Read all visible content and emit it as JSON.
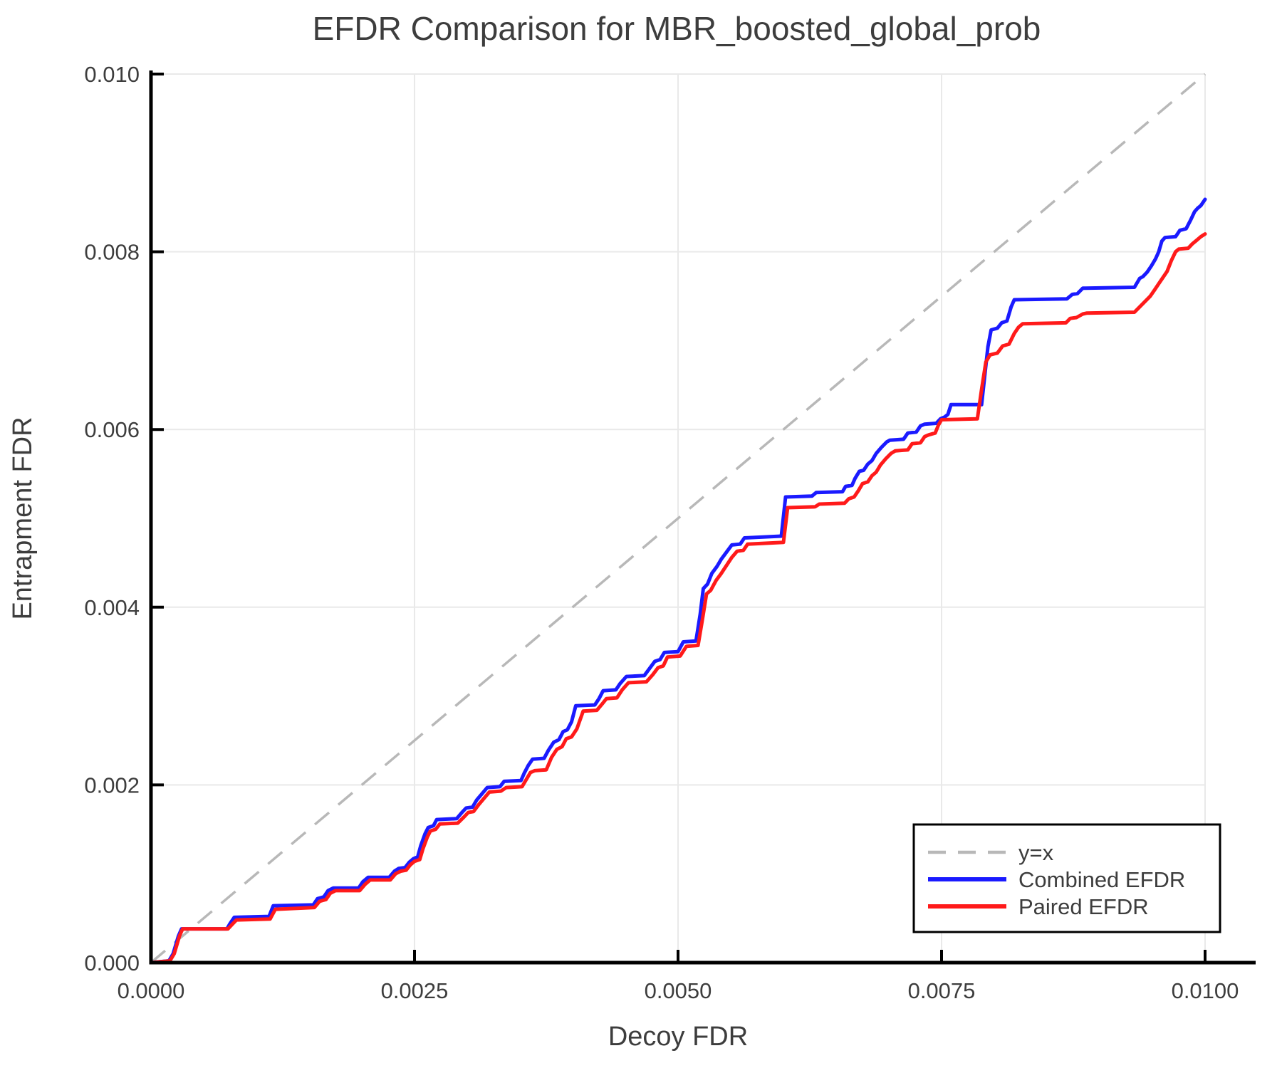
{
  "title": "EFDR Comparison for MBR_boosted_global_prob",
  "axes": {
    "xlabel": "Decoy FDR",
    "ylabel": "Entrapment FDR",
    "x_tick_labels": [
      "0.0000",
      "0.0025",
      "0.0050",
      "0.0075",
      "0.0100"
    ],
    "y_tick_labels": [
      "0.000",
      "0.002",
      "0.004",
      "0.006",
      "0.008",
      "0.010"
    ]
  },
  "legend": {
    "entries": [
      {
        "label": "y=x",
        "color": "#b8b8b8",
        "style": "dashed"
      },
      {
        "label": "Combined EFDR",
        "color": "#1a1aff",
        "style": "solid"
      },
      {
        "label": "Paired EFDR",
        "color": "#ff1a1a",
        "style": "solid"
      }
    ]
  },
  "colors": {
    "grid": "#e9e9e9",
    "spine": "#000000",
    "text": "#3d3d3d",
    "background": "#ffffff"
  },
  "chart_data": {
    "type": "line",
    "title": "EFDR Comparison for MBR_boosted_global_prob",
    "xlabel": "Decoy FDR",
    "ylabel": "Entrapment FDR",
    "xlim": [
      0.0,
      0.01
    ],
    "ylim": [
      0.0,
      0.01
    ],
    "grid": true,
    "legend_position": "lower right",
    "reference_line": "y=x",
    "series": [
      {
        "name": "Combined EFDR",
        "color": "#1a1aff",
        "points": [
          [
            0.0,
            0.0
          ],
          [
            0.00017,
            2e-05
          ],
          [
            0.00021,
            0.0001
          ],
          [
            0.00026,
            0.0003
          ],
          [
            0.00029,
            0.00038
          ],
          [
            0.00072,
            0.00038
          ],
          [
            0.00075,
            0.00044
          ],
          [
            0.00079,
            0.00051
          ],
          [
            0.00112,
            0.00052
          ],
          [
            0.00116,
            0.00064
          ],
          [
            0.00154,
            0.00065
          ],
          [
            0.00158,
            0.00072
          ],
          [
            0.00164,
            0.00074
          ],
          [
            0.00168,
            0.00081
          ],
          [
            0.00173,
            0.00084
          ],
          [
            0.00197,
            0.00084
          ],
          [
            0.00201,
            0.00091
          ],
          [
            0.00206,
            0.00096
          ],
          [
            0.00226,
            0.00096
          ],
          [
            0.00231,
            0.00103
          ],
          [
            0.00235,
            0.00106
          ],
          [
            0.00241,
            0.00107
          ],
          [
            0.00245,
            0.00113
          ],
          [
            0.00249,
            0.00117
          ],
          [
            0.00253,
            0.00119
          ],
          [
            0.00256,
            0.00132
          ],
          [
            0.0026,
            0.00145
          ],
          [
            0.00263,
            0.00152
          ],
          [
            0.00268,
            0.00154
          ],
          [
            0.00271,
            0.00161
          ],
          [
            0.0029,
            0.00162
          ],
          [
            0.00295,
            0.00169
          ],
          [
            0.00299,
            0.00174
          ],
          [
            0.00305,
            0.00175
          ],
          [
            0.00309,
            0.00183
          ],
          [
            0.00314,
            0.0019
          ],
          [
            0.00319,
            0.00197
          ],
          [
            0.00331,
            0.00198
          ],
          [
            0.00335,
            0.00204
          ],
          [
            0.00351,
            0.00205
          ],
          [
            0.00354,
            0.00213
          ],
          [
            0.00358,
            0.00222
          ],
          [
            0.00362,
            0.00229
          ],
          [
            0.00373,
            0.0023
          ],
          [
            0.00377,
            0.00239
          ],
          [
            0.00382,
            0.00248
          ],
          [
            0.00387,
            0.00251
          ],
          [
            0.00391,
            0.0026
          ],
          [
            0.00395,
            0.00262
          ],
          [
            0.00399,
            0.00271
          ],
          [
            0.00403,
            0.00289
          ],
          [
            0.00421,
            0.0029
          ],
          [
            0.00425,
            0.00297
          ],
          [
            0.00429,
            0.00306
          ],
          [
            0.00441,
            0.00307
          ],
          [
            0.00445,
            0.00314
          ],
          [
            0.00451,
            0.00322
          ],
          [
            0.00468,
            0.00323
          ],
          [
            0.00473,
            0.00331
          ],
          [
            0.00478,
            0.00339
          ],
          [
            0.00483,
            0.00341
          ],
          [
            0.00487,
            0.00349
          ],
          [
            0.005,
            0.0035
          ],
          [
            0.00505,
            0.00361
          ],
          [
            0.00517,
            0.00362
          ],
          [
            0.00521,
            0.00392
          ],
          [
            0.00524,
            0.00421
          ],
          [
            0.00528,
            0.00426
          ],
          [
            0.00532,
            0.00438
          ],
          [
            0.00537,
            0.00446
          ],
          [
            0.00541,
            0.00454
          ],
          [
            0.00546,
            0.00462
          ],
          [
            0.00551,
            0.0047
          ],
          [
            0.00559,
            0.00471
          ],
          [
            0.00563,
            0.00478
          ],
          [
            0.00598,
            0.0048
          ],
          [
            0.00602,
            0.00524
          ],
          [
            0.00627,
            0.00525
          ],
          [
            0.00631,
            0.00529
          ],
          [
            0.00656,
            0.0053
          ],
          [
            0.00659,
            0.00536
          ],
          [
            0.00665,
            0.00537
          ],
          [
            0.00668,
            0.00545
          ],
          [
            0.00672,
            0.00553
          ],
          [
            0.00676,
            0.00554
          ],
          [
            0.0068,
            0.00561
          ],
          [
            0.00684,
            0.00565
          ],
          [
            0.00688,
            0.00573
          ],
          [
            0.00693,
            0.0058
          ],
          [
            0.00698,
            0.00586
          ],
          [
            0.00701,
            0.00588
          ],
          [
            0.00714,
            0.00589
          ],
          [
            0.00718,
            0.00596
          ],
          [
            0.00726,
            0.00597
          ],
          [
            0.0073,
            0.00604
          ],
          [
            0.00734,
            0.00606
          ],
          [
            0.00745,
            0.00607
          ],
          [
            0.00749,
            0.00612
          ],
          [
            0.00753,
            0.00614
          ],
          [
            0.00756,
            0.00617
          ],
          [
            0.00759,
            0.00628
          ],
          [
            0.00788,
            0.00628
          ],
          [
            0.00791,
            0.00661
          ],
          [
            0.00794,
            0.00693
          ],
          [
            0.00797,
            0.00712
          ],
          [
            0.00803,
            0.00714
          ],
          [
            0.00807,
            0.0072
          ],
          [
            0.00812,
            0.00722
          ],
          [
            0.00816,
            0.00738
          ],
          [
            0.00819,
            0.00746
          ],
          [
            0.00869,
            0.00747
          ],
          [
            0.00874,
            0.00752
          ],
          [
            0.00879,
            0.00753
          ],
          [
            0.00884,
            0.00759
          ],
          [
            0.00933,
            0.0076
          ],
          [
            0.00938,
            0.0077
          ],
          [
            0.00941,
            0.00772
          ],
          [
            0.00945,
            0.00777
          ],
          [
            0.00949,
            0.00784
          ],
          [
            0.00953,
            0.00792
          ],
          [
            0.00956,
            0.008
          ],
          [
            0.00959,
            0.00812
          ],
          [
            0.00962,
            0.00816
          ],
          [
            0.00972,
            0.00817
          ],
          [
            0.00976,
            0.00824
          ],
          [
            0.00982,
            0.00826
          ],
          [
            0.00986,
            0.00835
          ],
          [
            0.0099,
            0.00845
          ],
          [
            0.00993,
            0.00849
          ],
          [
            0.00996,
            0.00852
          ],
          [
            0.01,
            0.00859
          ]
        ]
      },
      {
        "name": "Paired EFDR",
        "color": "#ff1a1a",
        "points": [
          [
            0.0,
            0.0
          ],
          [
            0.00018,
            2e-05
          ],
          [
            0.00022,
            0.0001
          ],
          [
            0.00027,
            0.0003
          ],
          [
            0.0003,
            0.00038
          ],
          [
            0.00073,
            0.00038
          ],
          [
            0.00077,
            0.00043
          ],
          [
            0.00081,
            0.00048
          ],
          [
            0.00113,
            0.00049
          ],
          [
            0.00118,
            0.0006
          ],
          [
            0.00155,
            0.00062
          ],
          [
            0.0016,
            0.00069
          ],
          [
            0.00166,
            0.00071
          ],
          [
            0.0017,
            0.00078
          ],
          [
            0.00175,
            0.00081
          ],
          [
            0.00198,
            0.00081
          ],
          [
            0.00203,
            0.00088
          ],
          [
            0.00208,
            0.00093
          ],
          [
            0.00227,
            0.00093
          ],
          [
            0.00232,
            0.001
          ],
          [
            0.00237,
            0.00103
          ],
          [
            0.00242,
            0.00104
          ],
          [
            0.00246,
            0.0011
          ],
          [
            0.0025,
            0.00114
          ],
          [
            0.00255,
            0.00116
          ],
          [
            0.00258,
            0.00128
          ],
          [
            0.00262,
            0.00141
          ],
          [
            0.00265,
            0.00148
          ],
          [
            0.0027,
            0.0015
          ],
          [
            0.00274,
            0.00156
          ],
          [
            0.00291,
            0.00157
          ],
          [
            0.00297,
            0.00164
          ],
          [
            0.00301,
            0.00169
          ],
          [
            0.00306,
            0.0017
          ],
          [
            0.00311,
            0.00178
          ],
          [
            0.00316,
            0.00185
          ],
          [
            0.00321,
            0.00192
          ],
          [
            0.00332,
            0.00193
          ],
          [
            0.00337,
            0.00197
          ],
          [
            0.00352,
            0.00198
          ],
          [
            0.00356,
            0.00206
          ],
          [
            0.0036,
            0.00214
          ],
          [
            0.00364,
            0.00216
          ],
          [
            0.00375,
            0.00217
          ],
          [
            0.0038,
            0.00231
          ],
          [
            0.00385,
            0.0024
          ],
          [
            0.0039,
            0.00243
          ],
          [
            0.00394,
            0.00252
          ],
          [
            0.00399,
            0.00254
          ],
          [
            0.00404,
            0.00263
          ],
          [
            0.0041,
            0.00283
          ],
          [
            0.00423,
            0.00284
          ],
          [
            0.00428,
            0.00291
          ],
          [
            0.00432,
            0.00297
          ],
          [
            0.00442,
            0.00298
          ],
          [
            0.00447,
            0.00307
          ],
          [
            0.00453,
            0.00315
          ],
          [
            0.0047,
            0.00316
          ],
          [
            0.00476,
            0.00324
          ],
          [
            0.00481,
            0.00332
          ],
          [
            0.00486,
            0.00334
          ],
          [
            0.0049,
            0.00344
          ],
          [
            0.00502,
            0.00345
          ],
          [
            0.00508,
            0.00356
          ],
          [
            0.00519,
            0.00357
          ],
          [
            0.00523,
            0.00385
          ],
          [
            0.00527,
            0.00415
          ],
          [
            0.00531,
            0.00419
          ],
          [
            0.00536,
            0.0043
          ],
          [
            0.00541,
            0.00438
          ],
          [
            0.00546,
            0.00447
          ],
          [
            0.00551,
            0.00456
          ],
          [
            0.00556,
            0.00463
          ],
          [
            0.00562,
            0.00464
          ],
          [
            0.00566,
            0.00471
          ],
          [
            0.006,
            0.00473
          ],
          [
            0.00604,
            0.00512
          ],
          [
            0.0063,
            0.00513
          ],
          [
            0.00634,
            0.00516
          ],
          [
            0.00658,
            0.00517
          ],
          [
            0.00662,
            0.00522
          ],
          [
            0.00667,
            0.00524
          ],
          [
            0.00671,
            0.00531
          ],
          [
            0.00675,
            0.00539
          ],
          [
            0.0068,
            0.00541
          ],
          [
            0.00684,
            0.00548
          ],
          [
            0.00688,
            0.00552
          ],
          [
            0.00692,
            0.0056
          ],
          [
            0.00697,
            0.00567
          ],
          [
            0.00702,
            0.00573
          ],
          [
            0.00706,
            0.00576
          ],
          [
            0.00718,
            0.00577
          ],
          [
            0.00722,
            0.00584
          ],
          [
            0.0073,
            0.00585
          ],
          [
            0.00734,
            0.00592
          ],
          [
            0.00738,
            0.00594
          ],
          [
            0.00744,
            0.00596
          ],
          [
            0.00747,
            0.00605
          ],
          [
            0.0075,
            0.00611
          ],
          [
            0.00784,
            0.00612
          ],
          [
            0.00788,
            0.00645
          ],
          [
            0.00792,
            0.00676
          ],
          [
            0.00796,
            0.00684
          ],
          [
            0.00803,
            0.00686
          ],
          [
            0.00808,
            0.00694
          ],
          [
            0.00814,
            0.00696
          ],
          [
            0.00819,
            0.00708
          ],
          [
            0.00823,
            0.00715
          ],
          [
            0.00827,
            0.00719
          ],
          [
            0.00868,
            0.0072
          ],
          [
            0.00872,
            0.00725
          ],
          [
            0.00878,
            0.00726
          ],
          [
            0.00884,
            0.0073
          ],
          [
            0.00888,
            0.00731
          ],
          [
            0.00933,
            0.00732
          ],
          [
            0.00938,
            0.00738
          ],
          [
            0.00943,
            0.00744
          ],
          [
            0.00948,
            0.0075
          ],
          [
            0.00952,
            0.00757
          ],
          [
            0.00956,
            0.00764
          ],
          [
            0.0096,
            0.00771
          ],
          [
            0.00964,
            0.00778
          ],
          [
            0.00968,
            0.0079
          ],
          [
            0.00972,
            0.008
          ],
          [
            0.00975,
            0.00803
          ],
          [
            0.00984,
            0.00804
          ],
          [
            0.00988,
            0.00809
          ],
          [
            0.00992,
            0.00813
          ],
          [
            0.00996,
            0.00817
          ],
          [
            0.01,
            0.0082
          ]
        ]
      }
    ]
  }
}
